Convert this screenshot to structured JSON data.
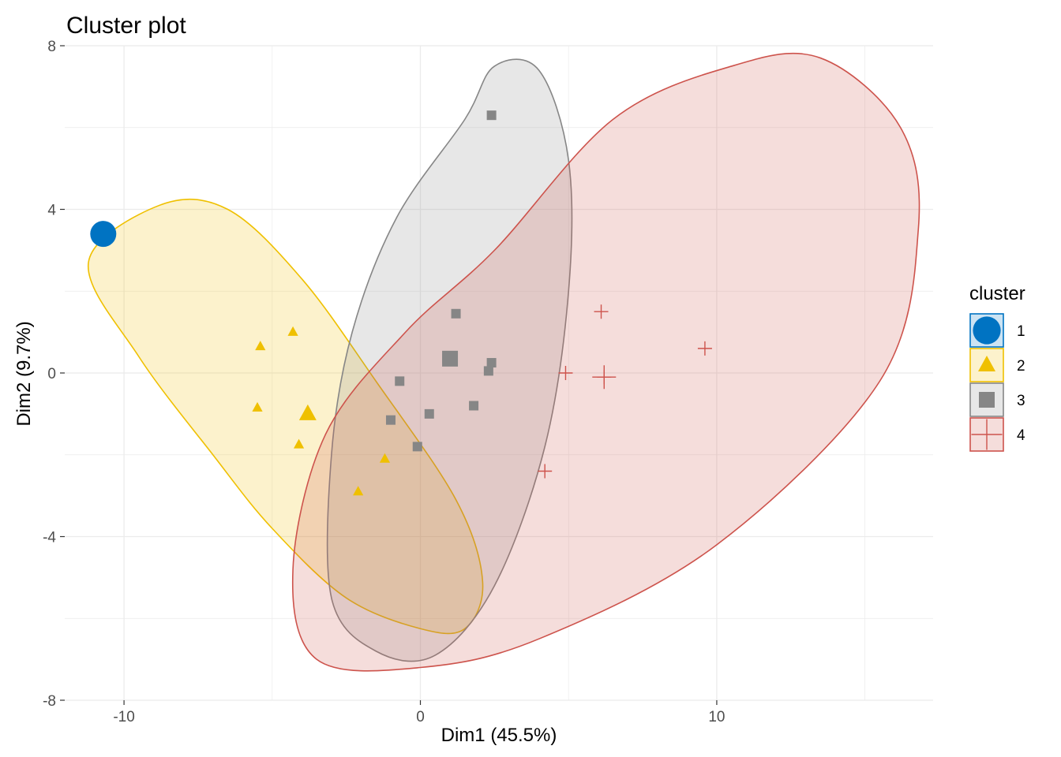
{
  "chart_data": {
    "type": "scatter",
    "title": "Cluster plot",
    "xlabel": "Dim1 (45.5%)",
    "ylabel": "Dim2 (9.7%)",
    "xlim": [
      -12,
      17.3
    ],
    "ylim": [
      -8,
      8
    ],
    "xticks": [
      -10,
      0,
      10
    ],
    "yticks": [
      -8,
      -4,
      0,
      4,
      8
    ],
    "grid": true,
    "legend": {
      "title": "cluster",
      "position": "right"
    },
    "series": [
      {
        "name": "1",
        "marker": "circle",
        "color": "#0073C2",
        "fill_opacity": 0.0,
        "points": [
          [
            -10.7,
            3.4
          ]
        ],
        "center": null,
        "ellipse": null
      },
      {
        "name": "2",
        "marker": "triangle",
        "color": "#EFC000",
        "fill_opacity": 0.2,
        "points": [
          [
            -4.3,
            1.0
          ],
          [
            -5.4,
            0.65
          ],
          [
            -5.5,
            -0.85
          ],
          [
            -4.1,
            -1.75
          ],
          [
            -1.2,
            -2.1
          ],
          [
            -2.1,
            -2.9
          ]
        ],
        "center": [
          -3.8,
          -1.0
        ],
        "ellipse": [
          [
            -11.2,
            2.7
          ],
          [
            -8.8,
            4.1
          ],
          [
            -6.5,
            4.0
          ],
          [
            -4.0,
            2.3
          ],
          [
            -1.5,
            -0.2
          ],
          [
            1.2,
            -3.1
          ],
          [
            2.1,
            -5.1
          ],
          [
            1.5,
            -6.25
          ],
          [
            0.0,
            -6.25
          ],
          [
            -2.5,
            -5.5
          ],
          [
            -5.0,
            -3.8
          ],
          [
            -7.0,
            -2.0
          ],
          [
            -9.5,
            0.4
          ]
        ]
      },
      {
        "name": "3",
        "marker": "square",
        "color": "#868686",
        "fill_opacity": 0.2,
        "points": [
          [
            2.4,
            6.3
          ],
          [
            1.2,
            1.45
          ],
          [
            0.9,
            0.35
          ],
          [
            2.4,
            0.25
          ],
          [
            2.3,
            0.05
          ],
          [
            -0.7,
            -0.2
          ],
          [
            1.8,
            -0.8
          ],
          [
            0.3,
            -1.0
          ],
          [
            -1.0,
            -1.15
          ],
          [
            -0.1,
            -1.8
          ]
        ],
        "center": [
          1.0,
          0.35
        ],
        "ellipse": [
          [
            1.5,
            6.2
          ],
          [
            2.5,
            7.5
          ],
          [
            4.0,
            7.4
          ],
          [
            5.0,
            5.2
          ],
          [
            5.0,
            2.0
          ],
          [
            4.2,
            -1.8
          ],
          [
            2.5,
            -5.2
          ],
          [
            0.5,
            -6.9
          ],
          [
            -1.5,
            -6.8
          ],
          [
            -3.0,
            -5.5
          ],
          [
            -3.0,
            -2.0
          ],
          [
            -2.3,
            1.0
          ],
          [
            -0.8,
            3.8
          ]
        ]
      },
      {
        "name": "4",
        "marker": "plus",
        "color": "#CD534C",
        "fill_opacity": 0.2,
        "points": [
          [
            6.1,
            1.5
          ],
          [
            9.6,
            0.6
          ],
          [
            4.9,
            0.0
          ],
          [
            6.2,
            -0.1
          ],
          [
            4.2,
            -2.4
          ]
        ],
        "center": [
          6.2,
          -0.1
        ],
        "ellipse": [
          [
            2.5,
            3.0
          ],
          [
            6.5,
            6.2
          ],
          [
            10.5,
            7.5
          ],
          [
            13.5,
            7.7
          ],
          [
            16.2,
            6.0
          ],
          [
            16.8,
            3.5
          ],
          [
            15.5,
            -0.2
          ],
          [
            10.0,
            -4.2
          ],
          [
            4.0,
            -6.5
          ],
          [
            0.0,
            -7.2
          ],
          [
            -3.5,
            -7.0
          ],
          [
            -4.3,
            -4.8
          ],
          [
            -3.2,
            -1.5
          ],
          [
            -0.5,
            1.0
          ]
        ]
      }
    ]
  }
}
